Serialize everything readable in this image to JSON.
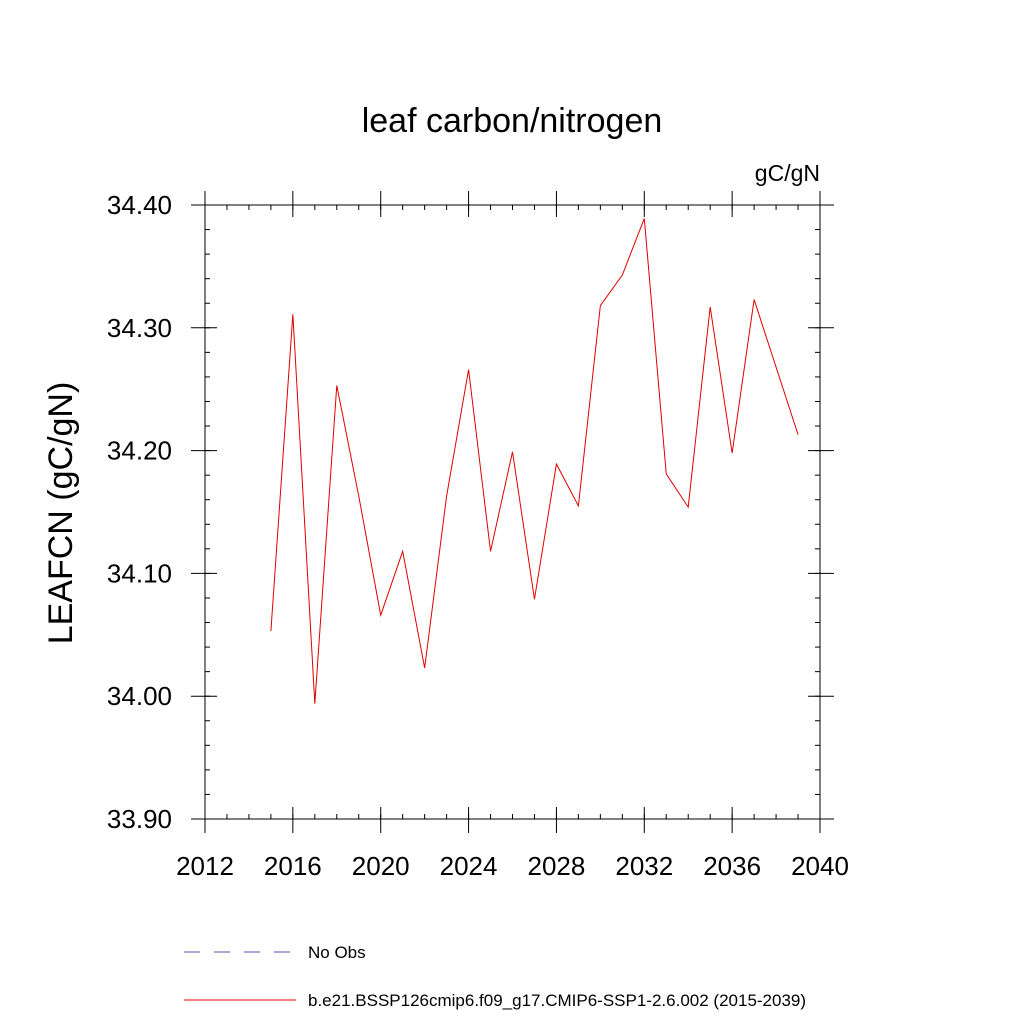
{
  "chart_data": {
    "type": "line",
    "title": "leaf carbon/nitrogen",
    "units": "gC/gN",
    "ylabel": "LEAFCN  (gC/gN)",
    "xlabel": "",
    "xlim": [
      2012,
      2040
    ],
    "ylim": [
      33.9,
      34.4
    ],
    "x_ticks": [
      2012,
      2016,
      2020,
      2024,
      2028,
      2032,
      2036,
      2040
    ],
    "x_tick_labels": [
      "2012",
      "2016",
      "2020",
      "2024",
      "2028",
      "2032",
      "2036",
      "2040"
    ],
    "x_minor_step": 1,
    "y_ticks": [
      33.9,
      34.0,
      34.1,
      34.2,
      34.3,
      34.4
    ],
    "y_tick_labels": [
      "33.90",
      "34.00",
      "34.10",
      "34.20",
      "34.30",
      "34.40"
    ],
    "y_minor_step": 0.02,
    "grid": false,
    "legend_position": "bottom",
    "legend": [
      {
        "label": "No Obs",
        "color": "#5a4fb0",
        "style": "dashed"
      },
      {
        "label": "b.e21.BSSP126cmip6.f09_g17.CMIP6-SSP1-2.6.002 (2015-2039)",
        "color": "#e00000",
        "style": "solid"
      }
    ],
    "series": [
      {
        "name": "b.e21.BSSP126cmip6.f09_g17.CMIP6-SSP1-2.6.002 (2015-2039)",
        "color": "#e00000",
        "x": [
          2015,
          2016,
          2017,
          2018,
          2019,
          2020,
          2021,
          2022,
          2023,
          2024,
          2025,
          2026,
          2027,
          2028,
          2029,
          2030,
          2031,
          2032,
          2033,
          2034,
          2035,
          2036,
          2037,
          2038,
          2039
        ],
        "values": [
          34.053,
          34.311,
          33.994,
          34.253,
          34.163,
          34.066,
          34.118,
          34.023,
          34.163,
          34.266,
          34.118,
          34.199,
          34.079,
          34.189,
          34.155,
          34.318,
          34.343,
          34.389,
          34.181,
          34.154,
          34.317,
          34.198,
          34.323,
          34.268,
          34.213
        ]
      }
    ]
  }
}
